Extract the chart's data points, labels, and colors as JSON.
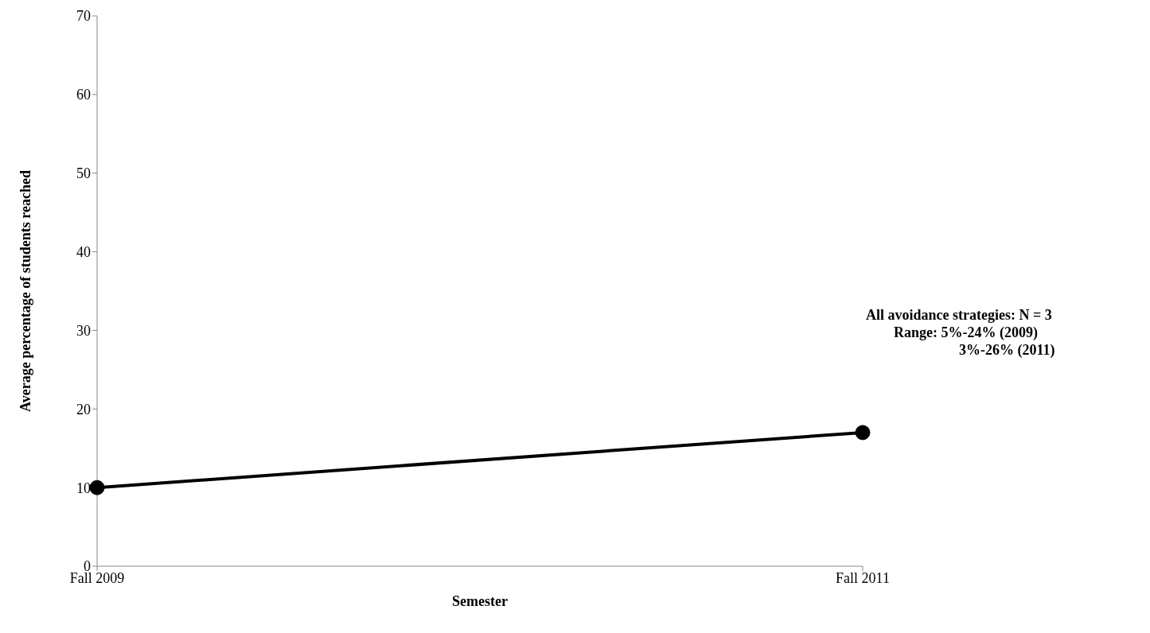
{
  "chart_data": {
    "type": "line",
    "xlabel": "Semester",
    "ylabel": "Average percentage of students reached",
    "categories": [
      "Fall 2009",
      "Fall 2011"
    ],
    "series": [
      {
        "color": "#000000",
        "values": [
          10,
          17
        ]
      }
    ],
    "ylim": [
      0,
      70
    ],
    "yticks": [
      0,
      10,
      20,
      30,
      40,
      50,
      60,
      70
    ],
    "marker": "circle",
    "line_style": "solid",
    "annotations": [
      "All avoidance strategies: N = 3",
      "Range: 5%-24% (2009)",
      "3%-26% (2011)"
    ]
  }
}
